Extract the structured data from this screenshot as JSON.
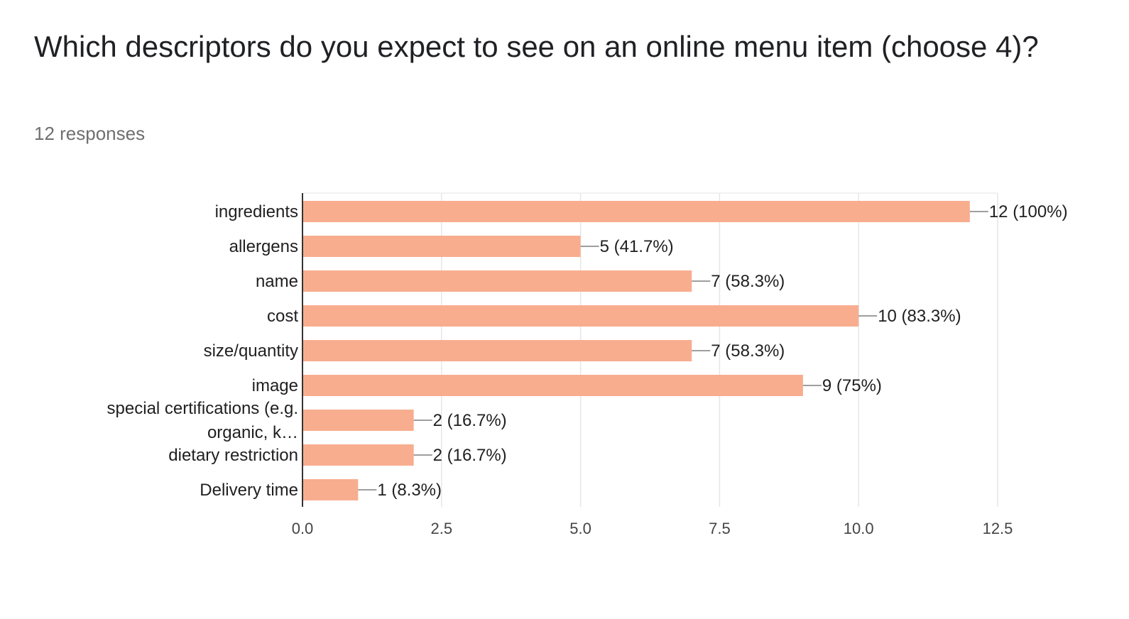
{
  "header": {
    "title": "Which descriptors do you expect to see on an online menu item (choose 4)?",
    "subtitle": "12 responses"
  },
  "chart_data": {
    "type": "bar",
    "orientation": "horizontal",
    "categories": [
      "ingredients",
      "allergens",
      "name",
      "cost",
      "size/quantity",
      "image",
      "special certifications (e.g. organic, k…",
      "dietary restriction",
      "Delivery time"
    ],
    "category_display_lines": [
      [
        "ingredients"
      ],
      [
        "allergens"
      ],
      [
        "name"
      ],
      [
        "cost"
      ],
      [
        "size/quantity"
      ],
      [
        "image"
      ],
      [
        "special certifications (e.g.",
        "organic, k…"
      ],
      [
        "dietary restriction"
      ],
      [
        "Delivery time"
      ]
    ],
    "values": [
      12,
      5,
      7,
      10,
      7,
      9,
      2,
      2,
      1
    ],
    "value_labels": [
      "12 (100%)",
      "5 (41.7%)",
      "7 (58.3%)",
      "10 (83.3%)",
      "7 (58.3%)",
      "9 (75%)",
      "2 (16.7%)",
      "2 (16.7%)",
      "1 (8.3%)"
    ],
    "xlim": [
      0,
      12.5
    ],
    "x_ticks": [
      "0.0",
      "2.5",
      "5.0",
      "7.5",
      "10.0",
      "12.5"
    ],
    "grid": true,
    "bar_color": "#f8ad8f",
    "leader_color": "#9e9e9e",
    "title": "",
    "xlabel": "",
    "ylabel": ""
  }
}
